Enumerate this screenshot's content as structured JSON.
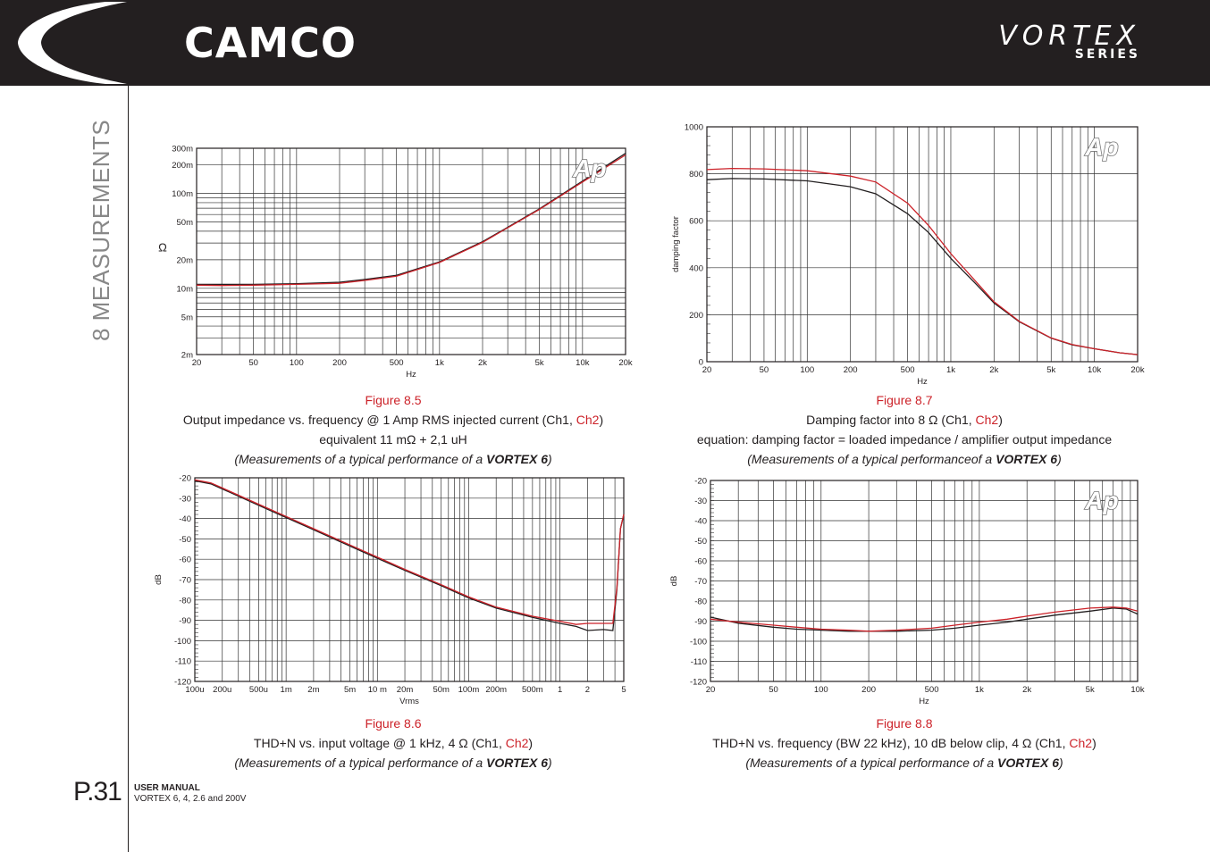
{
  "header": {
    "brand": "CAMCO",
    "series_name": "VORTEX",
    "series_sub": "SERIES"
  },
  "sidebar": {
    "section": "8 MEASUREMENTS"
  },
  "footer": {
    "page": "P.31",
    "manual_title": "USER MANUAL",
    "manual_sub": "VORTEX 6, 4, 2.6 and 200V"
  },
  "colors": {
    "ch1": "#231f20",
    "ch2": "#cc2229",
    "header_bg": "#231f20"
  },
  "figures": [
    {
      "label": "Figure 8.5",
      "line1_a": "Output impedance vs. frequency @ 1 Amp RMS injected current (Ch1, ",
      "line1_red": "Ch2",
      "line1_b": ")",
      "line2": "equivalent 11 mΩ + 2,1 uH",
      "line3_a": "(Measurements of a typical performance of a ",
      "line3_b": "VORTEX 6",
      "line3_c": ")"
    },
    {
      "label": "Figure 8.7",
      "line1_a": "Damping factor into 8 Ω (Ch1, ",
      "line1_red": "Ch2",
      "line1_b": ")",
      "line2": "equation: damping factor = loaded impedance / amplifier output impedance",
      "line3_a": "(Measurements of a typical performanceof a ",
      "line3_b": "VORTEX 6",
      "line3_c": ")"
    },
    {
      "label": "Figure 8.6",
      "line1_a": "THD+N vs. input voltage @ 1 kHz, 4 Ω (Ch1, ",
      "line1_red": "Ch2",
      "line1_b": ")",
      "line3_a": "(Measurements of a typical performance of a ",
      "line3_b": "VORTEX 6",
      "line3_c": ")"
    },
    {
      "label": "Figure 8.8",
      "line1_a": "THD+N vs. frequency (BW 22 kHz), 10 dB below clip, 4 Ω (Ch1, ",
      "line1_red": "Ch2",
      "line1_b": ")",
      "line3_a": "(Measurements of a typical performance of a ",
      "line3_b": "VORTEX 6",
      "line3_c": ")"
    }
  ],
  "chart_data": [
    {
      "type": "line",
      "xlabel": "Hz",
      "ylabel": "Ω",
      "xscale": "log",
      "yscale": "log",
      "xlim": [
        20,
        20000
      ],
      "ylim": [
        0.002,
        0.3
      ],
      "xticks": [
        20,
        50,
        100,
        200,
        500,
        1000,
        2000,
        5000,
        10000,
        20000
      ],
      "xtick_labels": [
        "20",
        "50",
        "100",
        "200",
        "500",
        "1k",
        "2k",
        "5k",
        "10k",
        "20k"
      ],
      "yticks": [
        0.002,
        0.005,
        0.01,
        0.02,
        0.05,
        0.1,
        0.2,
        0.3
      ],
      "ytick_labels": [
        "2m",
        "5m",
        "10m",
        "20m",
        "50m",
        "100m",
        "200m",
        "300m"
      ],
      "badge": "Ap",
      "series": [
        {
          "x": [
            20,
            30,
            50,
            100,
            200,
            300,
            500,
            1000,
            2000,
            3000,
            5000,
            10000,
            20000
          ],
          "y": [
            0.011,
            0.011,
            0.011,
            0.0112,
            0.0116,
            0.0124,
            0.0137,
            0.019,
            0.031,
            0.044,
            0.069,
            0.135,
            0.265
          ]
        },
        {
          "x": [
            20,
            30,
            50,
            100,
            200,
            300,
            500,
            1000,
            2000,
            3000,
            5000,
            10000,
            20000
          ],
          "y": [
            0.0108,
            0.0107,
            0.0108,
            0.011,
            0.0113,
            0.0121,
            0.0134,
            0.0187,
            0.0305,
            0.0435,
            0.068,
            0.132,
            0.255
          ]
        }
      ]
    },
    {
      "type": "line",
      "xlabel": "Hz",
      "ylabel": "damping factor",
      "xscale": "log",
      "yscale": "linear",
      "xlim": [
        20,
        20000
      ],
      "ylim": [
        0,
        1000
      ],
      "xticks": [
        20,
        50,
        100,
        200,
        500,
        1000,
        2000,
        5000,
        10000,
        20000
      ],
      "xtick_labels": [
        "20",
        "50",
        "100",
        "200",
        "500",
        "1k",
        "2k",
        "5k",
        "10k",
        "20k"
      ],
      "yticks": [
        0,
        200,
        400,
        600,
        800,
        1000
      ],
      "ytick_labels": [
        "0",
        "200",
        "400",
        "600",
        "800",
        "1000"
      ],
      "badge": "Ap",
      "series": [
        {
          "x": [
            20,
            30,
            50,
            100,
            200,
            300,
            500,
            700,
            1000,
            1500,
            2000,
            3000,
            5000,
            7000,
            10000,
            15000,
            20000
          ],
          "y": [
            775,
            780,
            778,
            770,
            745,
            715,
            630,
            550,
            440,
            330,
            250,
            170,
            100,
            72,
            55,
            38,
            30
          ]
        },
        {
          "x": [
            20,
            30,
            50,
            100,
            200,
            300,
            500,
            700,
            1000,
            1500,
            2000,
            3000,
            5000,
            7000,
            10000,
            15000,
            20000
          ],
          "y": [
            818,
            823,
            821,
            813,
            790,
            765,
            675,
            580,
            460,
            340,
            255,
            172,
            101,
            73,
            55,
            38,
            30
          ]
        }
      ]
    },
    {
      "type": "line",
      "xlabel": "Vrms",
      "ylabel": "dB",
      "xscale": "log",
      "yscale": "linear",
      "xlim": [
        0.0001,
        5
      ],
      "ylim": [
        -120,
        -20
      ],
      "xticks": [
        0.0001,
        0.0002,
        0.0005,
        0.001,
        0.002,
        0.005,
        0.01,
        0.02,
        0.05,
        0.1,
        0.2,
        0.5,
        1,
        2,
        5
      ],
      "xtick_labels": [
        "100u",
        "200u",
        "500u",
        "1m",
        "2m",
        "5m",
        "10 m",
        "20m",
        "50m",
        "100m",
        "200m",
        "500m",
        "1",
        "2",
        "5"
      ],
      "yticks": [
        -20,
        -30,
        -40,
        -50,
        -60,
        -70,
        -80,
        -90,
        -100,
        -110,
        -120
      ],
      "ytick_labels": [
        "-20",
        "-30",
        "-40",
        "-50",
        "-60",
        "-70",
        "-80",
        "-90",
        "-100",
        "-110",
        "-120"
      ],
      "series": [
        {
          "x": [
            0.0001,
            0.00015,
            0.0002,
            0.0005,
            0.001,
            0.002,
            0.005,
            0.01,
            0.02,
            0.05,
            0.1,
            0.2,
            0.5,
            1,
            1.5,
            2,
            3,
            3.8,
            4.2,
            4.6,
            5
          ],
          "y": [
            -21.5,
            -23,
            -25.5,
            -33.5,
            -39.5,
            -45.5,
            -53.5,
            -59.5,
            -65.5,
            -73,
            -79,
            -84,
            -88.5,
            -91.5,
            -93,
            -95,
            -94.5,
            -95,
            -75,
            -45,
            -38
          ]
        },
        {
          "x": [
            0.0001,
            0.00015,
            0.0002,
            0.0005,
            0.001,
            0.002,
            0.005,
            0.01,
            0.02,
            0.05,
            0.1,
            0.2,
            0.5,
            1,
            1.5,
            2,
            3,
            3.8,
            4.2,
            4.6,
            5
          ],
          "y": [
            -21,
            -22.5,
            -25,
            -33,
            -39,
            -45,
            -53,
            -59,
            -65,
            -72.5,
            -78.5,
            -83.5,
            -88,
            -90.5,
            -92,
            -91.5,
            -91.5,
            -91.5,
            -74,
            -45,
            -38
          ]
        }
      ]
    },
    {
      "type": "line",
      "xlabel": "Hz",
      "ylabel": "dB",
      "xscale": "log",
      "yscale": "linear",
      "xlim": [
        20,
        10000
      ],
      "ylim": [
        -120,
        -20
      ],
      "xticks": [
        20,
        50,
        100,
        200,
        500,
        1000,
        2000,
        5000,
        10000
      ],
      "xtick_labels": [
        "20",
        "50",
        "100",
        "200",
        "500",
        "1k",
        "2k",
        "5k",
        "10k"
      ],
      "yticks": [
        -20,
        -30,
        -40,
        -50,
        -60,
        -70,
        -80,
        -90,
        -100,
        -110,
        -120
      ],
      "ytick_labels": [
        "-20",
        "-30",
        "-40",
        "-50",
        "-60",
        "-70",
        "-80",
        "-90",
        "-100",
        "-110",
        "-120"
      ],
      "badge": "Ap",
      "series": [
        {
          "x": [
            20,
            30,
            50,
            70,
            100,
            150,
            200,
            300,
            500,
            700,
            1000,
            1500,
            2000,
            3000,
            5000,
            7000,
            8500,
            10000
          ],
          "y": [
            -88,
            -91,
            -93,
            -94,
            -94.5,
            -95,
            -95,
            -95,
            -94.5,
            -93.5,
            -92,
            -90.5,
            -89,
            -87,
            -85,
            -83.5,
            -84,
            -86.5
          ]
        },
        {
          "x": [
            20,
            30,
            50,
            70,
            100,
            150,
            200,
            300,
            500,
            700,
            1000,
            1500,
            2000,
            3000,
            5000,
            7000,
            8500,
            10000
          ],
          "y": [
            -89,
            -90.5,
            -92,
            -93,
            -94,
            -94.5,
            -95,
            -94.5,
            -93.5,
            -92,
            -90.5,
            -89,
            -87.5,
            -85.5,
            -83.5,
            -83,
            -83.5,
            -85
          ]
        }
      ]
    }
  ]
}
